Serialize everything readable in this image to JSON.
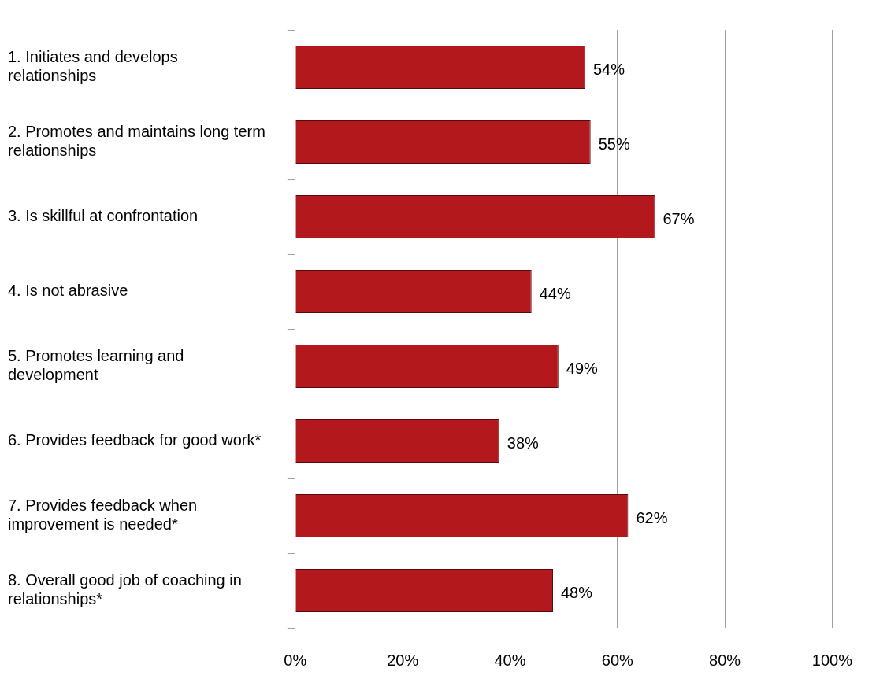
{
  "chart_data": {
    "type": "bar",
    "orientation": "horizontal",
    "categories": [
      "1. Initiates and develops relationships",
      "2. Promotes and maintains long term relationships",
      "3. Is skillful at confrontation",
      "4. Is not abrasive",
      "5. Promotes learning and development",
      "6. Provides feedback for good work*",
      "7. Provides feedback when improvement is needed*",
      "8. Overall good job of coaching in relationships*"
    ],
    "values": [
      54,
      55,
      67,
      44,
      49,
      38,
      62,
      48
    ],
    "value_labels": [
      "54%",
      "55%",
      "67%",
      "44%",
      "49%",
      "38%",
      "62%",
      "48%"
    ],
    "color": "#b3191c",
    "xlim": [
      0,
      100
    ],
    "xticks": [
      {
        "value": 0,
        "label": "0%"
      },
      {
        "value": 20,
        "label": "20%"
      },
      {
        "value": 40,
        "label": "40%"
      },
      {
        "value": 60,
        "label": "60%"
      },
      {
        "value": 80,
        "label": "80%"
      },
      {
        "value": 100,
        "label": "100%"
      }
    ],
    "grid": "x",
    "legend": false
  }
}
